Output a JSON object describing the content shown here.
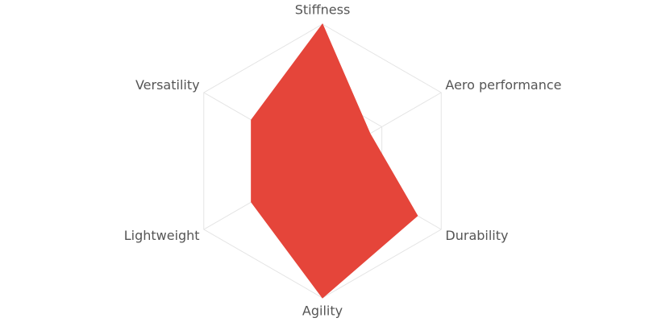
{
  "chart_data": {
    "type": "radar",
    "categories": [
      "Stiffness",
      "Aero performance",
      "Durability",
      "Agility",
      "Lightweight",
      "Versatility"
    ],
    "values": [
      1.0,
      0.4,
      0.8,
      1.0,
      0.6,
      0.6
    ],
    "color": "#e5453a",
    "rlim": [
      0,
      1
    ],
    "rticks": [
      0.5,
      1
    ],
    "grid": true
  }
}
